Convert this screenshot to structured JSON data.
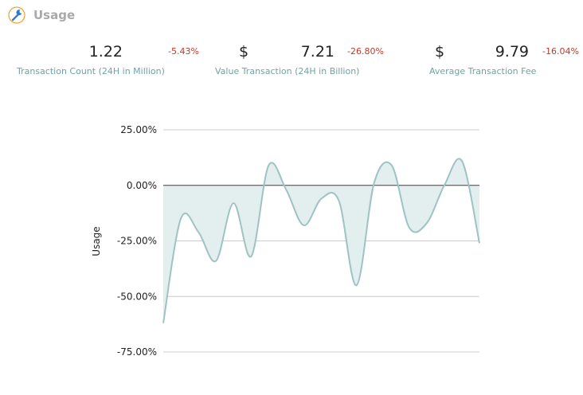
{
  "header": {
    "title": "Usage",
    "icon": "wrench-icon"
  },
  "metrics": [
    {
      "currency": "",
      "value": "1.22",
      "change": "-5.43%",
      "label": "Transaction Count (24H in Million)"
    },
    {
      "currency": "$",
      "value": "7.21",
      "change": "-26.80%",
      "label": "Value Transaction (24H in Billion)"
    },
    {
      "currency": "$",
      "value": "9.79",
      "change": "-16.04%",
      "label": "Average Transaction Fee"
    }
  ],
  "colors": {
    "line": "#9ec3c3",
    "fill": "#e3eeee",
    "grid": "#cccccc",
    "zero": "#444444",
    "negative": "#c0392b",
    "label": "#6fa3a3"
  },
  "chart_data": {
    "type": "area",
    "ylabel": "Usage",
    "y_ticks": [
      "25.00%",
      "0.00%",
      "-25.00%",
      "-50.00%",
      "-75.00%"
    ],
    "y_tick_values": [
      25,
      0,
      -25,
      -50,
      -75
    ],
    "ylim": [
      -75,
      25
    ],
    "grid": true,
    "y": [
      -62,
      -15,
      -21,
      -34,
      -8,
      -32,
      9,
      -2,
      -18,
      -6,
      -7,
      -45,
      1,
      9,
      -19,
      -17,
      0,
      11,
      -26
    ]
  }
}
